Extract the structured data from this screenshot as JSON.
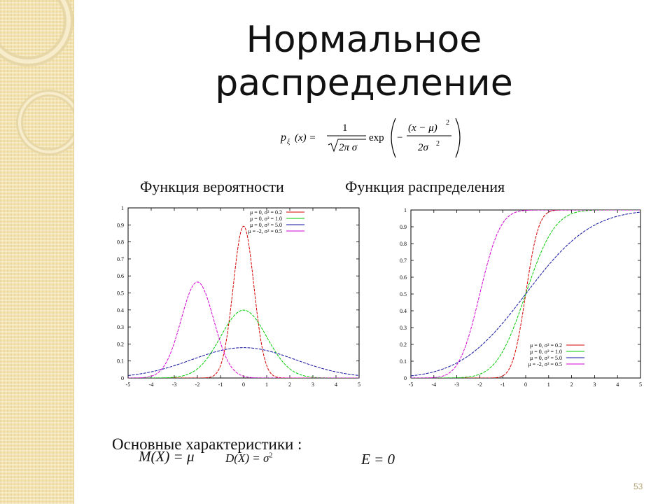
{
  "slide": {
    "title_line1": "Нормальное",
    "title_line2": "распределение",
    "formula": {
      "lhs": "p",
      "lhs_sub": "ξ",
      "lhs_arg": "(x) =",
      "numerator": "1",
      "denominator": "2π σ",
      "exp": "exp",
      "inner_num": "(x − μ)",
      "inner_num_pow": "2",
      "inner_den": "2σ",
      "inner_den_pow": "2",
      "minus": "−"
    },
    "caption_left": "Функция вероятности",
    "caption_right": "Функция распределения",
    "characteristics_label": "Основные характеристики :",
    "mean_formula": "M(X) = μ",
    "variance_formula": "D(X) = σ",
    "variance_pow": "2",
    "kurtosis_formula": "E = 0",
    "slide_number": "53"
  },
  "colors": {
    "red": "#d40000",
    "green": "#00cc00",
    "blue": "#1010a0",
    "magenta": "#d400d4"
  },
  "chart_data": [
    {
      "type": "line",
      "title": "Функция вероятности",
      "xlim": [
        -5,
        5
      ],
      "ylim": [
        0,
        1
      ],
      "x_ticks": [
        "-5",
        "-4",
        "-3",
        "-2",
        "-1",
        "0",
        "1",
        "2",
        "3",
        "4",
        "5"
      ],
      "y_ticks": [
        "0",
        "0.1",
        "0.2",
        "0.3",
        "0.4",
        "0.5",
        "0.6",
        "0.7",
        "0.8",
        "0.9",
        "1"
      ],
      "legend_position": "top-right",
      "series": [
        {
          "name": "μ = 0, σ² = 0.2",
          "mu": 0,
          "var": 0.2,
          "color": "red"
        },
        {
          "name": "μ = 0, σ² = 1.0",
          "mu": 0,
          "var": 1.0,
          "color": "green"
        },
        {
          "name": "μ = 0, σ² = 5.0",
          "mu": 0,
          "var": 5.0,
          "color": "blue"
        },
        {
          "name": "μ = -2, σ² = 0.5",
          "mu": -2,
          "var": 0.5,
          "color": "magenta"
        }
      ],
      "peaks": [
        0.89,
        0.4,
        0.18,
        0.56
      ]
    },
    {
      "type": "line",
      "title": "Функция распределения",
      "xlim": [
        -5,
        5
      ],
      "ylim": [
        0,
        1
      ],
      "x_ticks": [
        "-5",
        "-4",
        "-3",
        "-2",
        "-1",
        "0",
        "1",
        "2",
        "3",
        "4",
        "5"
      ],
      "y_ticks": [
        "0",
        "0.1",
        "0.2",
        "0.3",
        "0.4",
        "0.5",
        "0.6",
        "0.7",
        "0.8",
        "0.9",
        "1"
      ],
      "legend_position": "bottom-right",
      "series": [
        {
          "name": "μ = 0, σ² = 0.2",
          "mu": 0,
          "var": 0.2,
          "color": "red"
        },
        {
          "name": "μ = 0, σ² = 1.0",
          "mu": 0,
          "var": 1.0,
          "color": "green"
        },
        {
          "name": "μ = 0, σ² = 5.0",
          "mu": 0,
          "var": 5.0,
          "color": "blue"
        },
        {
          "name": "μ = -2, σ² = 0.5",
          "mu": -2,
          "var": 0.5,
          "color": "magenta"
        }
      ]
    }
  ]
}
